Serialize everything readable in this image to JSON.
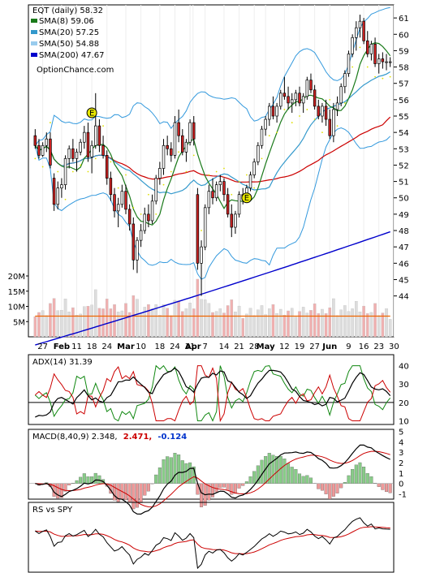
{
  "chart_data": {
    "type": "candlestick",
    "symbol_header": "EQT (daily) 58.32",
    "watermark": "OptionChance.com",
    "colors": {
      "sma8": "#1a7a1a",
      "sma20": "#3399cc",
      "sma50": "#99ccee",
      "sma200": "#0000cc",
      "bollinger": "#3399dd",
      "parabolic": "#e0e000",
      "up_candle": "#ffffff",
      "down_candle": "#cc2222",
      "volume_up": "#dddddd",
      "volume_down": "#f0b0b0",
      "volume_ma": "#ee6600",
      "event_marker": "#e8e800",
      "adx": "#000000",
      "plus_di": "#118811",
      "minus_di": "#cc0000",
      "macd": "#000000",
      "macd_signal": "#cc0000",
      "hist_pos": "#88cc88",
      "hist_neg": "#ee9999",
      "rs_line": "#000000",
      "rs_ma": "#cc0000",
      "macd_value_red": "#cc0000",
      "macd_value_blue": "#0033cc"
    },
    "legend": [
      {
        "label": "SMA(8) 59.06",
        "color_key": "sma8"
      },
      {
        "label": "SMA(20) 57.25",
        "color_key": "sma20"
      },
      {
        "label": "SMA(50) 54.88",
        "color_key": "sma50"
      },
      {
        "label": "SMA(200) 47.67",
        "color_key": "sma200"
      }
    ],
    "price_axis": {
      "ylim": [
        41.5,
        61.8
      ],
      "ticks": [
        44,
        45,
        46,
        47,
        48,
        49,
        50,
        51,
        52,
        53,
        54,
        55,
        56,
        57,
        58,
        59,
        60,
        61
      ]
    },
    "volume_axis": {
      "ylim": [
        0,
        24000000
      ],
      "ticks": [
        {
          "value": 5000000,
          "label": "5M"
        },
        {
          "value": 10000000,
          "label": "10M"
        },
        {
          "value": 15000000,
          "label": "15M"
        },
        {
          "value": 20000000,
          "label": "20M"
        }
      ]
    },
    "x_axis": {
      "ticks": [
        {
          "i": 2,
          "label": "27",
          "month": false
        },
        {
          "i": 7,
          "label": "Feb",
          "month": true
        },
        {
          "i": 11,
          "label": "11",
          "month": false
        },
        {
          "i": 15,
          "label": "18",
          "month": false
        },
        {
          "i": 19,
          "label": "24",
          "month": false
        },
        {
          "i": 24,
          "label": "Mar",
          "month": true
        },
        {
          "i": 28,
          "label": "10",
          "month": false
        },
        {
          "i": 33,
          "label": "18",
          "month": false
        },
        {
          "i": 37,
          "label": "24",
          "month": false
        },
        {
          "i": 41,
          "label": "31",
          "month": false
        },
        {
          "i": 41.8,
          "label": "Apr",
          "month": true
        },
        {
          "i": 45,
          "label": "7",
          "month": false
        },
        {
          "i": 50,
          "label": "14",
          "month": false
        },
        {
          "i": 54,
          "label": "21",
          "month": false
        },
        {
          "i": 58,
          "label": "28",
          "month": false
        },
        {
          "i": 61,
          "label": "May",
          "month": true
        },
        {
          "i": 66,
          "label": "12",
          "month": false
        },
        {
          "i": 70,
          "label": "19",
          "month": false
        },
        {
          "i": 74,
          "label": "27",
          "month": false
        },
        {
          "i": 78,
          "label": "Jun",
          "month": true
        },
        {
          "i": 83,
          "label": "9",
          "month": false
        },
        {
          "i": 87,
          "label": "16",
          "month": false
        },
        {
          "i": 91,
          "label": "23",
          "month": false
        },
        {
          "i": 95,
          "label": "30",
          "month": false
        }
      ]
    },
    "candles": [
      [
        53.8,
        54.2,
        53.0,
        53.2
      ],
      [
        53.2,
        53.6,
        52.4,
        52.6
      ],
      [
        52.6,
        53.4,
        52.5,
        53.2
      ],
      [
        53.2,
        54.0,
        52.8,
        53.6
      ],
      [
        53.6,
        54.0,
        51.8,
        52.0
      ],
      [
        51.2,
        51.5,
        49.2,
        49.6
      ],
      [
        49.6,
        51.0,
        49.3,
        50.6
      ],
      [
        50.6,
        51.2,
        50.0,
        50.8
      ],
      [
        50.8,
        52.6,
        50.5,
        52.4
      ],
      [
        52.4,
        53.2,
        51.8,
        53.0
      ],
      [
        53.0,
        53.6,
        52.2,
        52.4
      ],
      [
        52.4,
        53.0,
        51.6,
        52.8
      ],
      [
        52.8,
        53.6,
        52.6,
        53.4
      ],
      [
        53.4,
        54.4,
        53.0,
        54.0
      ],
      [
        54.0,
        54.6,
        52.2,
        52.5
      ],
      [
        52.5,
        53.5,
        51.5,
        53.2
      ],
      [
        53.2,
        56.4,
        53.0,
        54.4
      ],
      [
        54.4,
        54.8,
        52.8,
        53.2
      ],
      [
        53.2,
        53.8,
        52.4,
        52.6
      ],
      [
        52.6,
        52.9,
        50.8,
        51.2
      ],
      [
        51.2,
        51.6,
        49.8,
        50.2
      ],
      [
        50.2,
        50.6,
        48.8,
        49.2
      ],
      [
        49.2,
        50.0,
        48.2,
        49.6
      ],
      [
        49.6,
        50.8,
        49.4,
        50.4
      ],
      [
        50.4,
        50.8,
        49.0,
        49.3
      ],
      [
        49.3,
        49.6,
        48.0,
        48.4
      ],
      [
        48.4,
        48.8,
        45.6,
        46.2
      ],
      [
        46.2,
        47.6,
        45.4,
        47.4
      ],
      [
        47.4,
        48.4,
        47.0,
        48.0
      ],
      [
        48.0,
        49.4,
        47.8,
        49.0
      ],
      [
        49.0,
        49.6,
        48.2,
        48.6
      ],
      [
        48.6,
        50.2,
        48.4,
        49.8
      ],
      [
        49.8,
        51.4,
        49.6,
        51.2
      ],
      [
        51.2,
        52.2,
        50.8,
        51.8
      ],
      [
        51.8,
        53.6,
        51.4,
        53.2
      ],
      [
        53.2,
        53.8,
        52.6,
        53.0
      ],
      [
        53.0,
        53.4,
        52.2,
        52.6
      ],
      [
        52.6,
        55.0,
        52.4,
        54.6
      ],
      [
        54.6,
        55.4,
        53.4,
        53.8
      ],
      [
        53.8,
        54.2,
        52.6,
        52.8
      ],
      [
        52.8,
        53.6,
        52.2,
        53.4
      ],
      [
        53.4,
        54.8,
        53.2,
        54.6
      ],
      [
        54.6,
        55.0,
        53.2,
        53.6
      ],
      [
        50.2,
        50.6,
        45.6,
        46.0
      ],
      [
        46.0,
        47.4,
        44.0,
        47.0
      ],
      [
        47.0,
        49.6,
        46.8,
        49.4
      ],
      [
        49.4,
        50.8,
        49.0,
        50.4
      ],
      [
        50.4,
        51.2,
        49.6,
        50.0
      ],
      [
        50.0,
        51.0,
        49.8,
        50.8
      ],
      [
        50.8,
        51.4,
        50.4,
        51.0
      ],
      [
        51.0,
        51.2,
        49.8,
        50.2
      ],
      [
        50.2,
        50.6,
        48.8,
        49.0
      ],
      [
        49.0,
        49.6,
        47.6,
        48.2
      ],
      [
        48.2,
        49.2,
        47.8,
        49.0
      ],
      [
        49.0,
        50.4,
        48.8,
        50.2
      ],
      [
        50.2,
        50.6,
        49.6,
        49.9
      ],
      [
        49.9,
        50.8,
        49.8,
        50.6
      ],
      [
        50.6,
        51.6,
        50.4,
        51.4
      ],
      [
        51.4,
        52.4,
        51.2,
        52.2
      ],
      [
        52.2,
        53.4,
        52.0,
        53.2
      ],
      [
        53.2,
        54.4,
        53.0,
        54.2
      ],
      [
        54.2,
        55.0,
        53.8,
        54.8
      ],
      [
        54.8,
        55.8,
        54.4,
        55.6
      ],
      [
        55.6,
        56.2,
        54.8,
        55.0
      ],
      [
        55.0,
        55.8,
        54.6,
        55.6
      ],
      [
        55.6,
        56.6,
        55.4,
        56.4
      ],
      [
        56.4,
        57.4,
        56.0,
        56.2
      ],
      [
        56.2,
        56.8,
        55.4,
        55.8
      ],
      [
        55.8,
        56.4,
        55.2,
        56.0
      ],
      [
        56.0,
        56.6,
        55.6,
        56.4
      ],
      [
        56.4,
        56.8,
        55.6,
        55.8
      ],
      [
        55.8,
        56.4,
        55.2,
        56.2
      ],
      [
        56.2,
        57.4,
        56.0,
        57.2
      ],
      [
        57.2,
        57.6,
        56.4,
        56.6
      ],
      [
        56.6,
        56.9,
        55.4,
        55.6
      ],
      [
        55.6,
        56.0,
        54.8,
        55.0
      ],
      [
        55.0,
        55.8,
        54.6,
        55.6
      ],
      [
        55.6,
        56.0,
        54.4,
        54.8
      ],
      [
        54.8,
        55.4,
        53.6,
        53.8
      ],
      [
        53.8,
        55.8,
        53.4,
        55.4
      ],
      [
        55.4,
        56.2,
        55.0,
        55.8
      ],
      [
        55.8,
        57.0,
        55.6,
        56.8
      ],
      [
        56.8,
        57.8,
        56.4,
        57.6
      ],
      [
        57.6,
        59.0,
        57.4,
        58.8
      ],
      [
        58.8,
        60.0,
        58.6,
        59.8
      ],
      [
        59.8,
        60.8,
        59.0,
        60.4
      ],
      [
        60.4,
        61.2,
        59.8,
        60.8
      ],
      [
        60.8,
        61.0,
        59.4,
        59.6
      ],
      [
        59.6,
        60.2,
        58.6,
        58.8
      ],
      [
        58.8,
        59.6,
        58.4,
        59.4
      ],
      [
        59.4,
        59.8,
        58.0,
        58.2
      ],
      [
        58.2,
        58.8,
        57.6,
        58.5
      ],
      [
        58.5,
        58.9,
        57.9,
        58.32
      ],
      [
        58.32,
        58.8,
        57.8,
        58.32
      ],
      [
        58.32,
        58.6,
        58.0,
        58.32
      ]
    ],
    "volume_avg": 6800000,
    "event_markers": [
      {
        "i": 15,
        "price": 55.2,
        "label": "E"
      },
      {
        "i": 56,
        "price": 50.0,
        "label": "E"
      }
    ],
    "adx_panel": {
      "title": "ADX(14) 31.39",
      "ylim": [
        8,
        46
      ],
      "ticks": [
        10,
        20,
        30,
        40
      ],
      "ref_line": 20
    },
    "macd_panel": {
      "title": "MACD(8,40,9) 2.348,",
      "signal_text": "2.471,",
      "hist_text": "-0.124",
      "ylim": [
        -1.5,
        5.2
      ],
      "ticks": [
        -1,
        0,
        1,
        2,
        3,
        4,
        5
      ]
    },
    "rs_panel": {
      "title": "RS vs SPY"
    }
  }
}
